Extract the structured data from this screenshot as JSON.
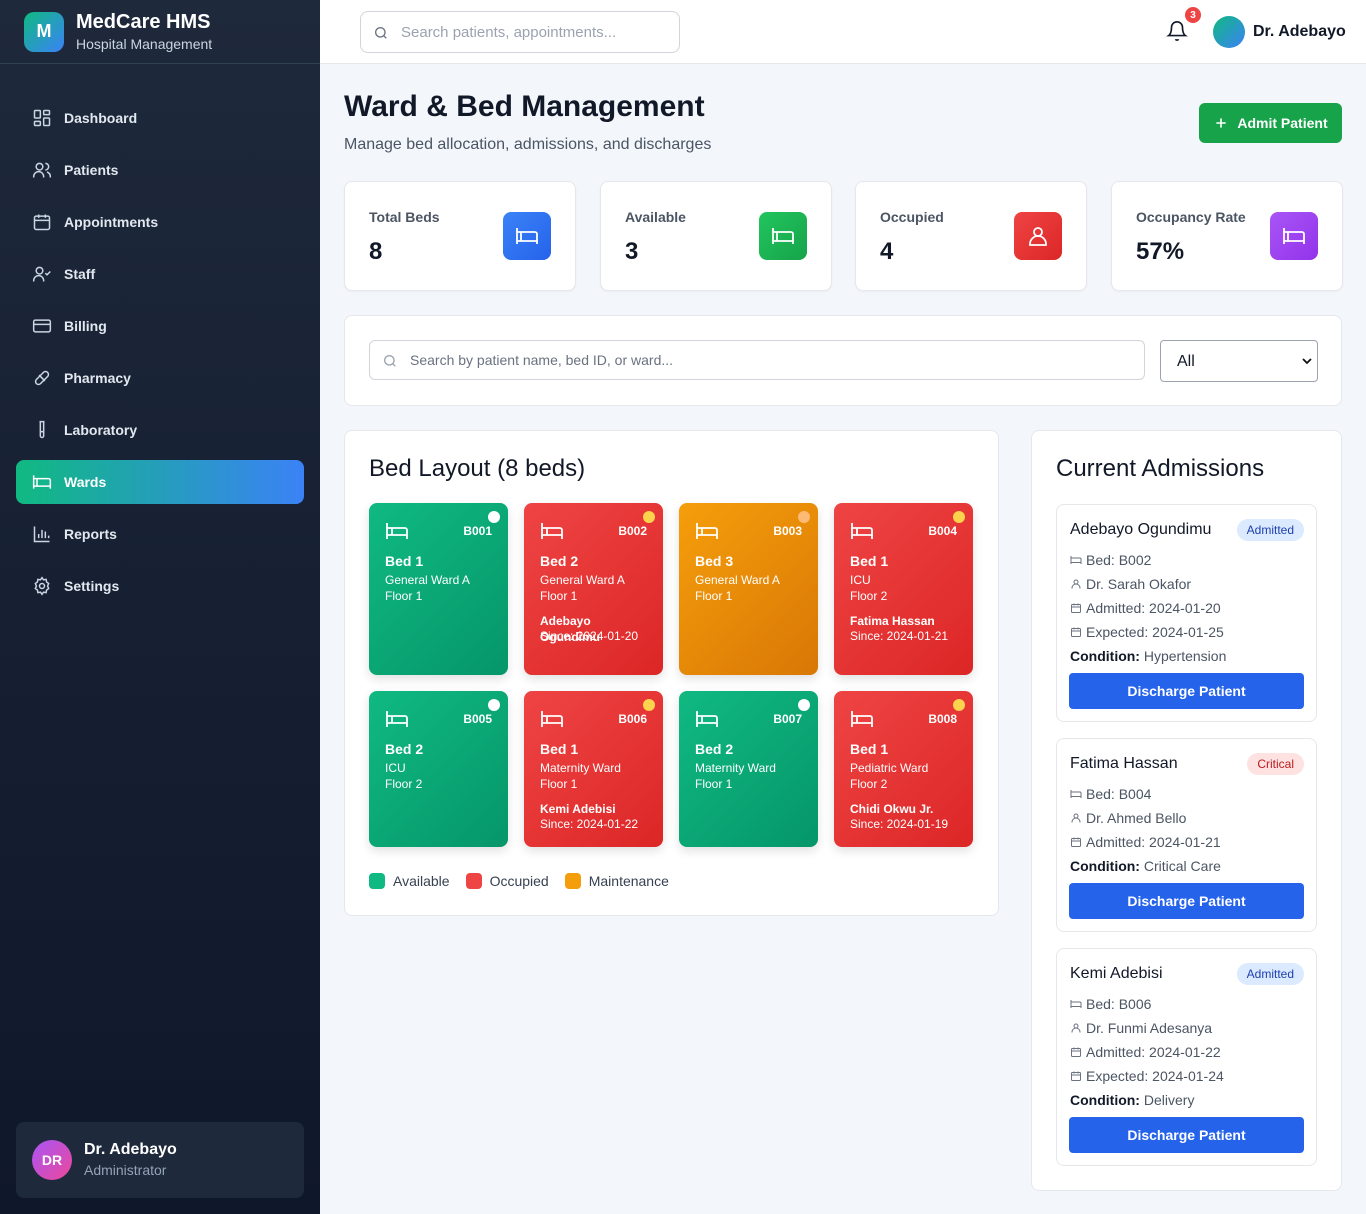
{
  "brand": {
    "logo_letter": "M",
    "name": "MedCare HMS",
    "subtitle": "Hospital Management"
  },
  "nav": [
    {
      "label": "Dashboard",
      "icon": "grid-icon",
      "active": false
    },
    {
      "label": "Patients",
      "icon": "users-icon",
      "active": false
    },
    {
      "label": "Appointments",
      "icon": "calendar-icon",
      "active": false
    },
    {
      "label": "Staff",
      "icon": "user-check-icon",
      "active": false
    },
    {
      "label": "Billing",
      "icon": "credit-card-icon",
      "active": false
    },
    {
      "label": "Pharmacy",
      "icon": "pill-icon",
      "active": false
    },
    {
      "label": "Laboratory",
      "icon": "test-tube-icon",
      "active": false
    },
    {
      "label": "Wards",
      "icon": "bed-icon",
      "active": true
    },
    {
      "label": "Reports",
      "icon": "bar-chart-icon",
      "active": false
    },
    {
      "label": "Settings",
      "icon": "gear-icon",
      "active": false
    }
  ],
  "sidebar_user": {
    "initials": "DR",
    "name": "Dr. Adebayo",
    "role": "Administrator"
  },
  "topbar": {
    "search_placeholder": "Search patients, appointments...",
    "notification_count": "3",
    "user_name": "Dr. Adebayo"
  },
  "header": {
    "title": "Ward & Bed Management",
    "subtitle": "Manage bed allocation, admissions, and discharges",
    "admit_label": "Admit Patient"
  },
  "stats": [
    {
      "label": "Total Beds",
      "value": "8",
      "color": "#3b82f6",
      "icon": "bed-icon"
    },
    {
      "label": "Available",
      "value": "3",
      "color": "#16a34a",
      "icon": "bed-icon"
    },
    {
      "label": "Occupied",
      "value": "4",
      "color": "#dc2626",
      "icon": "user-icon"
    },
    {
      "label": "Occupancy Rate",
      "value": "57%",
      "color": "#a855f7",
      "icon": "bed-icon"
    }
  ],
  "filter": {
    "search_placeholder": "Search by patient name, bed ID, or ward...",
    "selected": "All"
  },
  "bed_layout": {
    "title": "Bed Layout (8 beds)",
    "beds": [
      {
        "id": "B001",
        "name": "Bed 1",
        "ward": "General Ward A",
        "floor": "Floor 1",
        "status": "available",
        "patient": "",
        "since": "",
        "dot": "#ffffff"
      },
      {
        "id": "B002",
        "name": "Bed 2",
        "ward": "General Ward A",
        "floor": "Floor 1",
        "status": "occupied",
        "patient": "Adebayo Ogundimu",
        "since": "Since: 2024-01-20",
        "dot": "#fcd34d"
      },
      {
        "id": "B003",
        "name": "Bed 3",
        "ward": "General Ward A",
        "floor": "Floor 1",
        "status": "maintenance",
        "patient": "",
        "since": "",
        "dot": "#fdba74"
      },
      {
        "id": "B004",
        "name": "Bed 1",
        "ward": "ICU",
        "floor": "Floor 2",
        "status": "occupied",
        "patient": "Fatima Hassan",
        "since": "Since: 2024-01-21",
        "dot": "#fcd34d"
      },
      {
        "id": "B005",
        "name": "Bed 2",
        "ward": "ICU",
        "floor": "Floor 2",
        "status": "available",
        "patient": "",
        "since": "",
        "dot": "#ffffff"
      },
      {
        "id": "B006",
        "name": "Bed 1",
        "ward": "Maternity Ward",
        "floor": "Floor 1",
        "status": "occupied",
        "patient": "Kemi Adebisi",
        "since": "Since: 2024-01-22",
        "dot": "#fcd34d"
      },
      {
        "id": "B007",
        "name": "Bed 2",
        "ward": "Maternity Ward",
        "floor": "Floor 1",
        "status": "available",
        "patient": "",
        "since": "",
        "dot": "#ffffff"
      },
      {
        "id": "B008",
        "name": "Bed 1",
        "ward": "Pediatric Ward",
        "floor": "Floor 2",
        "status": "occupied",
        "patient": "Chidi Okwu Jr.",
        "since": "Since: 2024-01-19",
        "dot": "#fcd34d"
      }
    ],
    "legend": [
      {
        "label": "Available",
        "color": "#10b981"
      },
      {
        "label": "Occupied",
        "color": "#ef4444"
      },
      {
        "label": "Maintenance",
        "color": "#f59e0b"
      }
    ]
  },
  "admissions": {
    "title": "Current Admissions",
    "discharge_label": "Discharge Patient",
    "condition_label": "Condition:",
    "items": [
      {
        "name": "Adebayo Ogundimu",
        "badge": "Admitted",
        "badge_type": "admitted",
        "bed": "Bed: B002",
        "doctor": "Dr. Sarah Okafor",
        "admitted": "Admitted: 2024-01-20",
        "expected": "Expected: 2024-01-25",
        "condition": "Hypertension"
      },
      {
        "name": "Fatima Hassan",
        "badge": "Critical",
        "badge_type": "critical",
        "bed": "Bed: B004",
        "doctor": "Dr. Ahmed Bello",
        "admitted": "Admitted: 2024-01-21",
        "expected": "",
        "condition": "Critical Care"
      },
      {
        "name": "Kemi Adebisi",
        "badge": "Admitted",
        "badge_type": "admitted",
        "bed": "Bed: B006",
        "doctor": "Dr. Funmi Adesanya",
        "admitted": "Admitted: 2024-01-22",
        "expected": "Expected: 2024-01-24",
        "condition": "Delivery"
      }
    ]
  }
}
